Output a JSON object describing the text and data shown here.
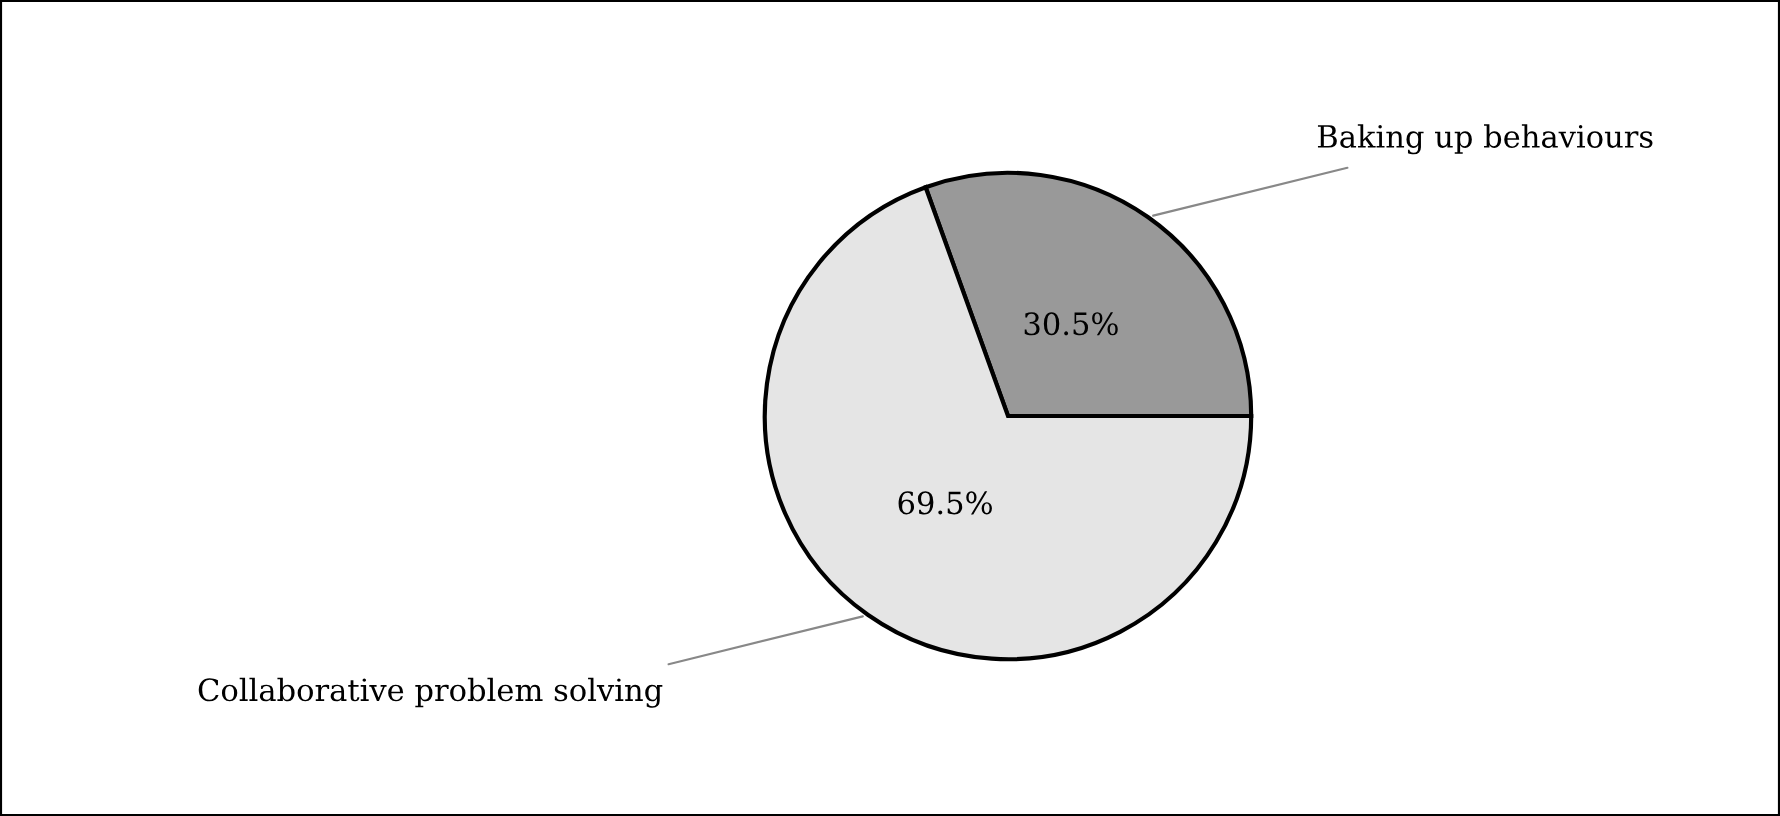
{
  "chart_data": {
    "type": "pie",
    "categories": [
      "Baking up behaviours",
      "Collaborative problem solving"
    ],
    "values": [
      30.5,
      69.5
    ],
    "colors": [
      "#999999",
      "#e5e5e5"
    ],
    "value_labels": [
      "30.5%",
      "69.5%"
    ],
    "legend": false
  }
}
